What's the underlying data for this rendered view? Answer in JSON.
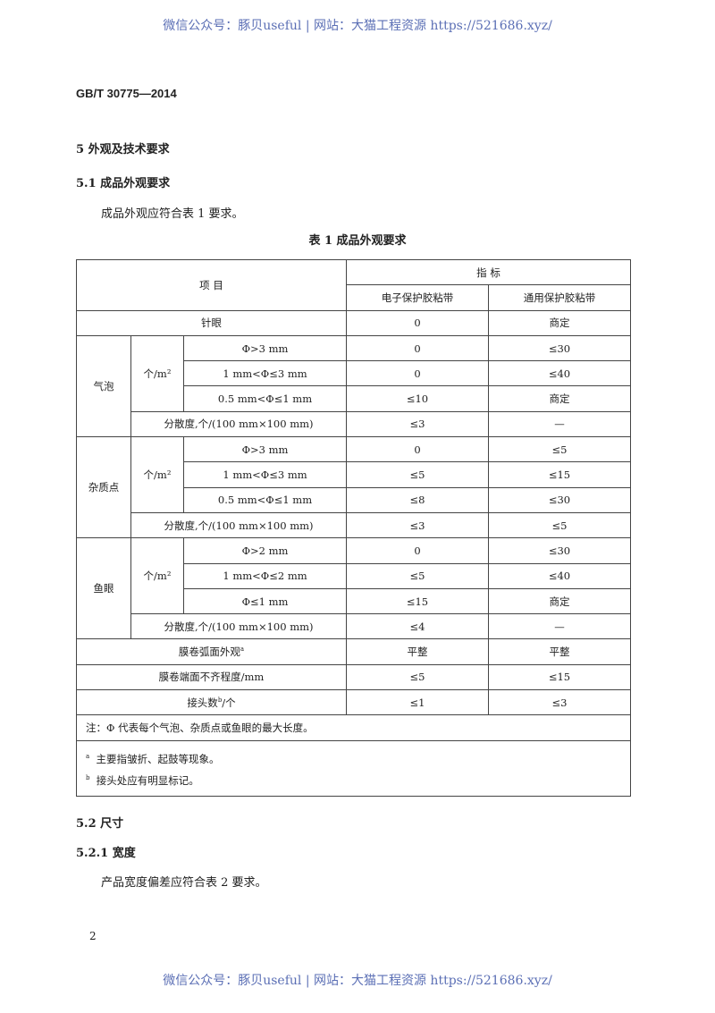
{
  "watermark": "微信公众号：豚贝useful | 网站：大猫工程资源 https://521686.xyz/",
  "standard": "GB/T 30775—2014",
  "section5": "5  外观及技术要求",
  "section51": "5.1  成品外观要求",
  "para51": "成品外观应符合表 1 要求。",
  "table_title": "表 1  成品外观要求",
  "table": {
    "h_item": "项      目",
    "h_index": "指      标",
    "h_col1": "电子保护胶粘带",
    "h_col2": "通用保护胶粘带",
    "pinhole": [
      "针眼",
      "0",
      "商定"
    ],
    "unit": "个/m²",
    "groups": [
      {
        "name": "气泡",
        "rows": [
          [
            "Φ>3 mm",
            "0",
            "≤30"
          ],
          [
            "1 mm<Φ≤3 mm",
            "0",
            "≤40"
          ],
          [
            "0.5 mm<Φ≤1 mm",
            "≤10",
            "商定"
          ]
        ],
        "disp": [
          "分散度,个/(100 mm×100 mm)",
          "≤3",
          "—"
        ]
      },
      {
        "name": "杂质点",
        "rows": [
          [
            "Φ>3 mm",
            "0",
            "≤5"
          ],
          [
            "1 mm<Φ≤3 mm",
            "≤5",
            "≤15"
          ],
          [
            "0.5 mm<Φ≤1 mm",
            "≤8",
            "≤30"
          ]
        ],
        "disp": [
          "分散度,个/(100 mm×100 mm)",
          "≤3",
          "≤5"
        ]
      },
      {
        "name": "鱼眼",
        "rows": [
          [
            "Φ>2 mm",
            "0",
            "≤30"
          ],
          [
            "1 mm<Φ≤2 mm",
            "≤5",
            "≤40"
          ],
          [
            "Φ≤1 mm",
            "≤15",
            "商定"
          ]
        ],
        "disp": [
          "分散度,个/(100 mm×100 mm)",
          "≤4",
          "—"
        ]
      }
    ],
    "arc": [
      "膜卷弧面外观",
      "平整",
      "平整"
    ],
    "arc_mark": "a",
    "edge": [
      "膜卷端面不齐程度/mm",
      "≤5",
      "≤15"
    ],
    "joint": [
      "接头数",
      "≤1",
      "≤3"
    ],
    "joint_mark": "b",
    "joint_unit": "/个",
    "note": "注：Φ 代表每个气泡、杂质点或鱼眼的最大长度。",
    "fn_a_mark": "a",
    "fn_a": "主要指皱折、起鼓等现象。",
    "fn_b_mark": "b",
    "fn_b": "接头处应有明显标记。"
  },
  "section52": "5.2  尺寸",
  "section521": "5.2.1  宽度",
  "para521": "产品宽度偏差应符合表 2 要求。",
  "page_number": "2"
}
